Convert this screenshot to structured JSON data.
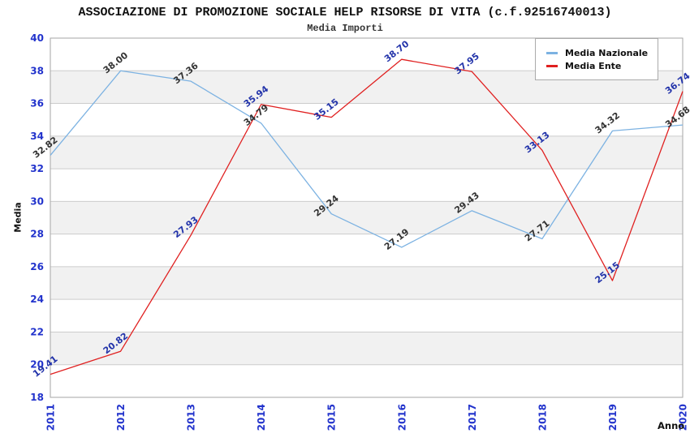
{
  "chart_data": {
    "type": "line",
    "title": "ASSOCIAZIONE DI PROMOZIONE SOCIALE HELP RISORSE DI VITA (c.f.92516740013)",
    "subtitle": "Media Importi",
    "xlabel": "Anno",
    "ylabel": "Media",
    "categories": [
      "2011",
      "2012",
      "2013",
      "2014",
      "2015",
      "2016",
      "2017",
      "2018",
      "2019",
      "2020"
    ],
    "ylim": [
      18,
      40
    ],
    "yticks": [
      18,
      20,
      22,
      24,
      26,
      28,
      30,
      32,
      34,
      36,
      38,
      40
    ],
    "grid": "horizontal",
    "banded_background": true,
    "legend_position": "top-right",
    "series": [
      {
        "name": "Media Nazionale",
        "color": "#7CB2E2",
        "label_color": "#333333",
        "values": [
          32.82,
          38.0,
          37.36,
          34.79,
          29.24,
          27.19,
          29.43,
          27.71,
          34.32,
          34.68
        ]
      },
      {
        "name": "Media Ente",
        "color": "#E02020",
        "label_color": "#2233AA",
        "values": [
          19.41,
          20.82,
          27.93,
          35.94,
          35.15,
          38.7,
          37.95,
          33.13,
          25.15,
          36.74
        ]
      }
    ],
    "colors": {
      "tick_label": "#2233CC",
      "band": "#F1F1F1",
      "grid": "#CCCCCC",
      "border": "#A6A6A6"
    }
  }
}
